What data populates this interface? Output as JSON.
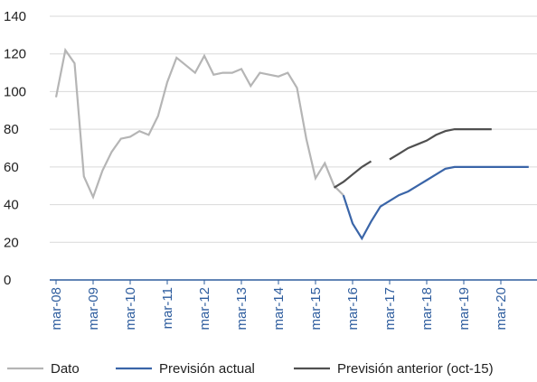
{
  "chart_data": {
    "type": "line",
    "categories": [
      "mar-08",
      null,
      null,
      null,
      "mar-09",
      null,
      null,
      null,
      "mar-10",
      null,
      null,
      null,
      "mar-11",
      null,
      null,
      null,
      "mar-12",
      null,
      null,
      null,
      "mar-13",
      null,
      null,
      null,
      "mar-14",
      null,
      null,
      null,
      "mar-15",
      null,
      null,
      null,
      "mar-16",
      null,
      null,
      null,
      "mar-17",
      null,
      null,
      null,
      "mar-18",
      null,
      null,
      null,
      "mar-19",
      null,
      null,
      null,
      "mar-20",
      null,
      null,
      null
    ],
    "series": [
      {
        "name": "Dato",
        "color": "#b5b5b5",
        "values": [
          97,
          122,
          115,
          55,
          44,
          58,
          68,
          75,
          76,
          79,
          77,
          87,
          105,
          118,
          114,
          110,
          119,
          109,
          110,
          110,
          112,
          103,
          110,
          109,
          108,
          110,
          102,
          75,
          54,
          62,
          50,
          45,
          null,
          null,
          null,
          null,
          null,
          null,
          null,
          null,
          null,
          null,
          null,
          null,
          null,
          null,
          null,
          null,
          null,
          null,
          null,
          null
        ]
      },
      {
        "name": "Previsión actual",
        "color": "#3a65a8",
        "values": [
          null,
          null,
          null,
          null,
          null,
          null,
          null,
          null,
          null,
          null,
          null,
          null,
          null,
          null,
          null,
          null,
          null,
          null,
          null,
          null,
          null,
          null,
          null,
          null,
          null,
          null,
          null,
          null,
          null,
          null,
          null,
          45,
          30,
          22,
          31,
          39,
          42,
          45,
          47,
          50,
          53,
          56,
          59,
          60,
          60,
          60,
          60,
          60,
          60,
          60,
          60,
          60
        ]
      },
      {
        "name": "Previsión anterior (oct-15)",
        "color": "#505050",
        "values": [
          null,
          null,
          null,
          null,
          null,
          null,
          null,
          null,
          null,
          null,
          null,
          null,
          null,
          null,
          null,
          null,
          null,
          null,
          null,
          null,
          null,
          null,
          null,
          null,
          null,
          null,
          null,
          null,
          null,
          null,
          49,
          52,
          56,
          60,
          63,
          null,
          64,
          67,
          70,
          72,
          74,
          77,
          79,
          80,
          80,
          80,
          80,
          80,
          null,
          null,
          null,
          null
        ]
      }
    ],
    "ylim": [
      0,
      140
    ],
    "yticks": [
      0,
      20,
      40,
      60,
      80,
      100,
      120,
      140
    ],
    "grid": true,
    "legend": "bottom"
  }
}
